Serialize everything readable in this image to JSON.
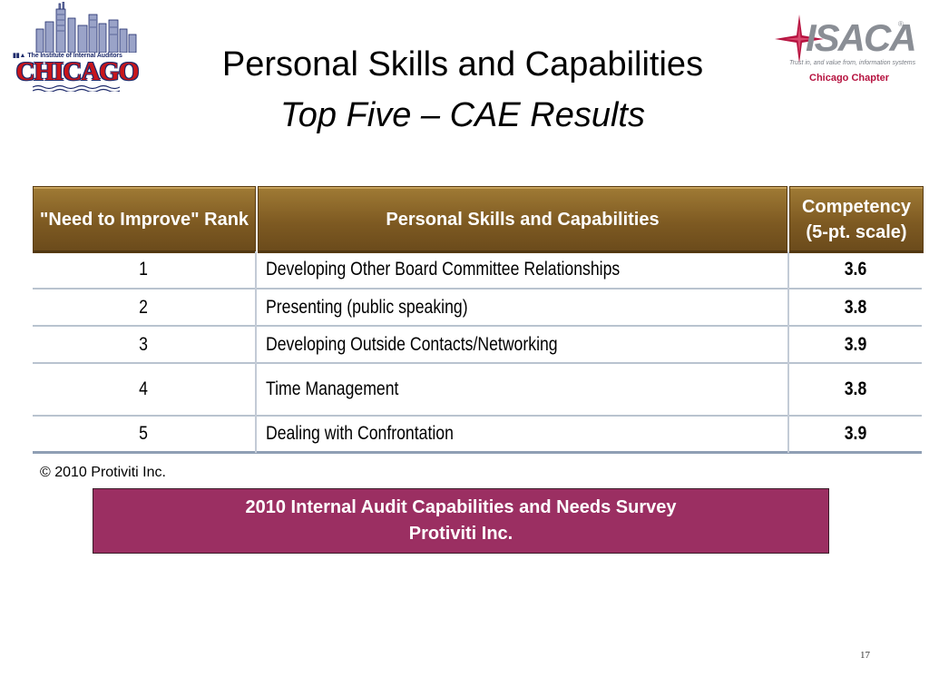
{
  "logos": {
    "left": {
      "caption": "The Institute of Internal Auditors",
      "city": "CHICAGO"
    },
    "right": {
      "wordmark": "ISACA",
      "registered": "®",
      "tagline": "Trust in, and value from, information systems",
      "chapter": "Chicago Chapter",
      "star_color": "#b6123f"
    }
  },
  "slide": {
    "title": "Personal Skills and Capabilities",
    "subtitle": "Top Five – CAE Results"
  },
  "table": {
    "headers": {
      "rank": "\"Need to Improve\" Rank",
      "skill": "Personal Skills and Capabilities",
      "competency_line1": "Competency",
      "competency_line2": "(5-pt. scale)"
    },
    "rows": [
      {
        "rank": "1",
        "skill": "Developing Other Board Committee Relationships",
        "competency": "3.6"
      },
      {
        "rank": "2",
        "skill": "Presenting (public speaking)",
        "competency": "3.8"
      },
      {
        "rank": "3",
        "skill": "Developing Outside Contacts/Networking",
        "competency": "3.9"
      },
      {
        "rank": "4",
        "skill": "Time Management",
        "competency": "3.8"
      },
      {
        "rank": "5",
        "skill": "Dealing with Confrontation",
        "competency": "3.9"
      }
    ],
    "header_color": "#7e5a22"
  },
  "footer": {
    "copyright": "© 2010 Protiviti Inc.",
    "source_line1": "2010 Internal Audit Capabilities and Needs Survey",
    "source_line2": "Protiviti Inc.",
    "source_box_color": "#9b2f62",
    "page_number": "17"
  }
}
